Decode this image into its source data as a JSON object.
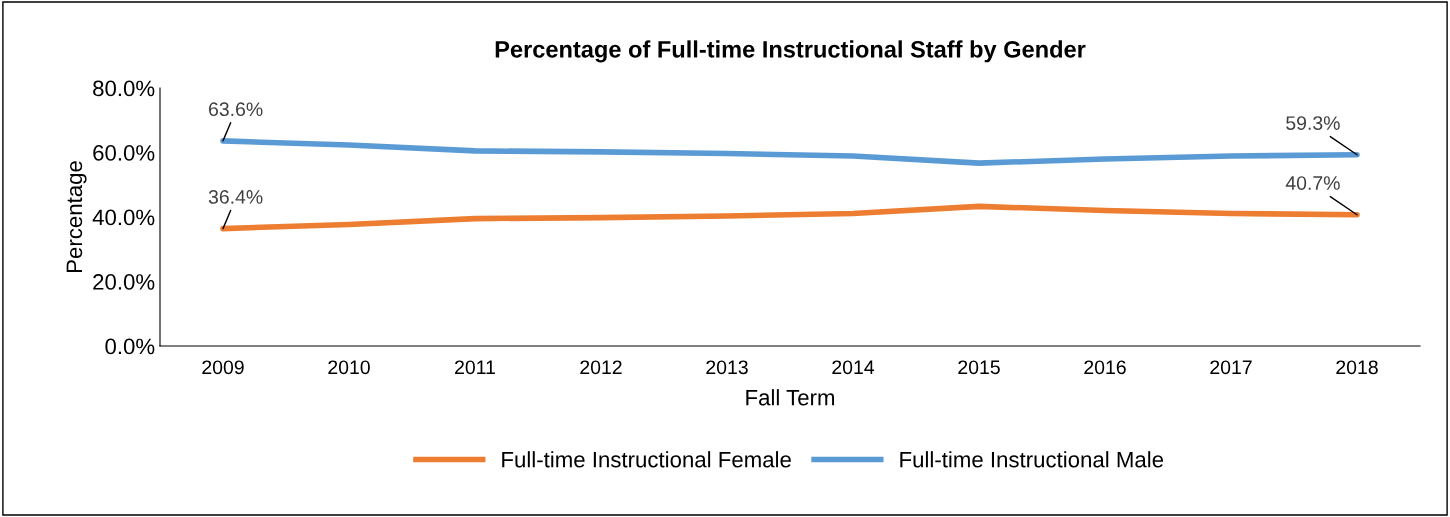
{
  "chart_data": {
    "type": "line",
    "title": "Percentage of Full-time Instructional Staff by Gender",
    "xlabel": "Fall Term",
    "ylabel": "Percentage",
    "categories": [
      "2009",
      "2010",
      "2011",
      "2012",
      "2013",
      "2014",
      "2015",
      "2016",
      "2017",
      "2018"
    ],
    "series": [
      {
        "name": "Full-time Instructional Female",
        "color": "#ed7d31",
        "values": [
          36.4,
          37.7,
          39.5,
          39.8,
          40.3,
          41.1,
          43.3,
          42.0,
          41.1,
          40.7
        ],
        "value_labels": [
          "36.4%",
          null,
          null,
          null,
          null,
          null,
          null,
          null,
          null,
          "40.7%"
        ]
      },
      {
        "name": "Full-time Instructional Male",
        "color": "#5b9bd5",
        "values": [
          63.6,
          62.3,
          60.5,
          60.2,
          59.7,
          58.9,
          56.7,
          58.0,
          58.9,
          59.3
        ],
        "value_labels": [
          "63.6%",
          null,
          null,
          null,
          null,
          null,
          null,
          null,
          null,
          "59.3%"
        ]
      }
    ],
    "ylim": [
      0,
      80
    ],
    "yticks": [
      {
        "value": 0,
        "label": "0.0%"
      },
      {
        "value": 20,
        "label": "20.0%"
      },
      {
        "value": 40,
        "label": "40.0%"
      },
      {
        "value": 60,
        "label": "60.0%"
      },
      {
        "value": 80,
        "label": "80.0%"
      }
    ],
    "grid": false,
    "legend": "bottom",
    "marker": "none",
    "line_style": "solid"
  }
}
